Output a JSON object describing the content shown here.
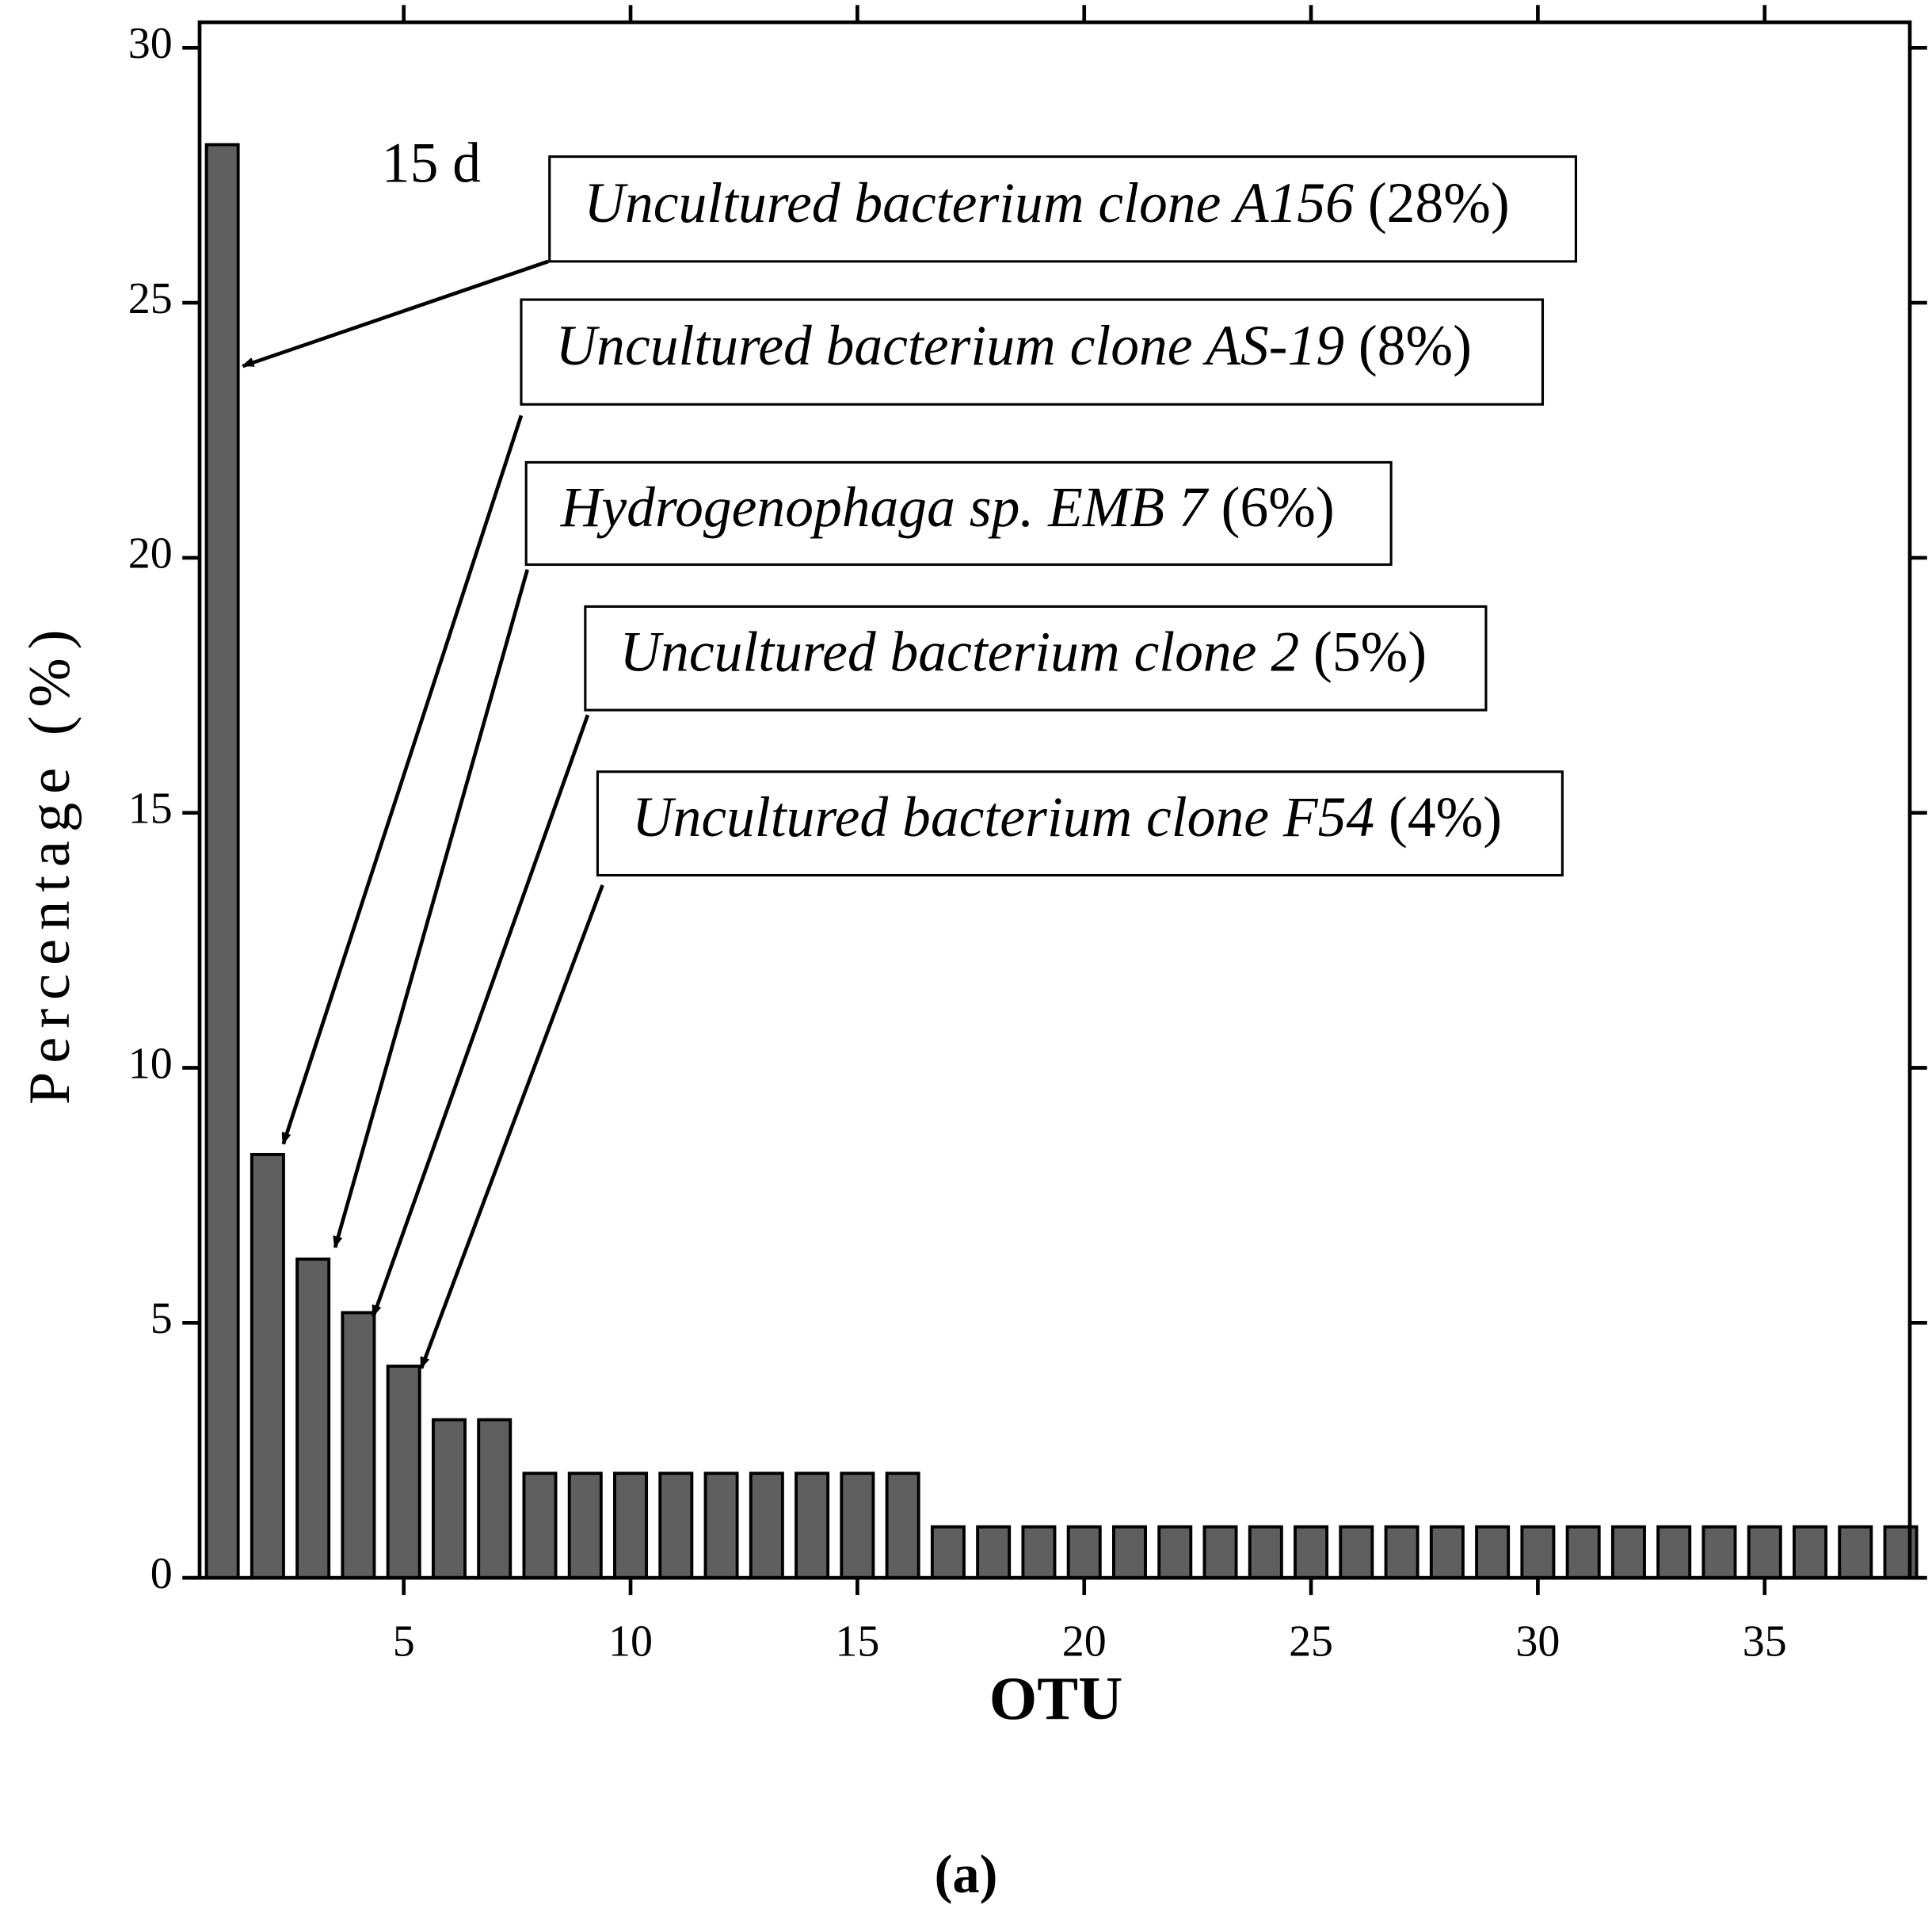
{
  "chart_data": {
    "type": "bar",
    "annotation": "15 d",
    "x_label": "OTU",
    "y_label": "Percentage (%)",
    "caption": "(a)",
    "x": [
      1,
      2,
      3,
      4,
      5,
      6,
      7,
      8,
      9,
      10,
      11,
      12,
      13,
      14,
      15,
      16,
      17,
      18,
      19,
      20,
      21,
      22,
      23,
      24,
      25,
      26,
      27,
      28,
      29,
      30,
      31,
      32,
      33,
      34,
      35,
      36,
      37,
      38
    ],
    "values": [
      28.1,
      8.3,
      6.25,
      5.2,
      4.15,
      3.1,
      3.1,
      2.05,
      2.05,
      2.05,
      2.05,
      2.05,
      2.05,
      2.05,
      2.05,
      2.05,
      1.0,
      1.0,
      1.0,
      1.0,
      1.0,
      1.0,
      1.0,
      1.0,
      1.0,
      1.0,
      1.0,
      1.0,
      1.0,
      1.0,
      1.0,
      1.0,
      1.0,
      1.0,
      1.0,
      1.0,
      1.0,
      1.0
    ],
    "color": "#5f5f5f",
    "xlim": [
      0.5,
      38.2
    ],
    "xticks": [
      5,
      10,
      15,
      20,
      25,
      30,
      35
    ],
    "ylim": [
      0,
      30.5
    ],
    "yticks": [
      0,
      5,
      10,
      15,
      20,
      25,
      30
    ],
    "callouts": [
      {
        "name": "Uncultured bacterium clone A156",
        "label": "(28%)"
      },
      {
        "name": "Uncultured bacterium clone AS-19",
        "label": "(8%)"
      },
      {
        "name": "Hydrogenophaga sp. EMB 7",
        "label": "(6%)"
      },
      {
        "name": "Uncultured bacterium clone 2",
        "label": "(5%)"
      },
      {
        "name": "Uncultured bacterium clone F54",
        "label": "(4%)"
      }
    ]
  }
}
